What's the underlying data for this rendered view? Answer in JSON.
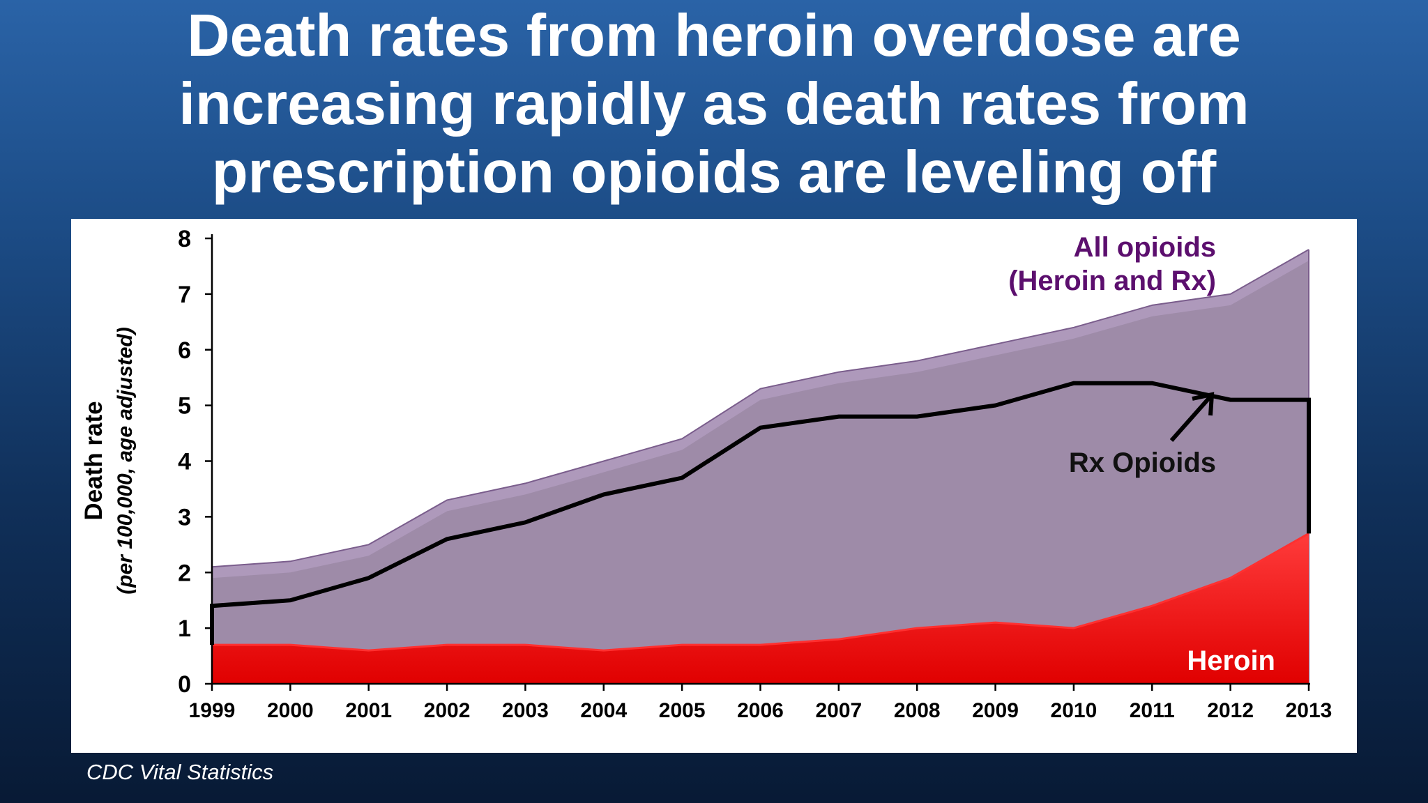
{
  "slide": {
    "title": "Death rates from heroin overdose are increasing rapidly as death rates from prescription opioids are leveling off",
    "source": "CDC Vital Statistics"
  },
  "chart_data": {
    "type": "area",
    "title": "",
    "xlabel": "",
    "ylabel": "Death rate",
    "ylabel_subtitle": "(per 100,000, age adjusted)",
    "x": [
      1999,
      2000,
      2001,
      2002,
      2003,
      2004,
      2005,
      2006,
      2007,
      2008,
      2009,
      2010,
      2011,
      2012,
      2013
    ],
    "x_tick_labels": [
      "1999",
      "2000",
      "2001",
      "2002",
      "2003",
      "2004",
      "2005",
      "2006",
      "2007",
      "2008",
      "2009",
      "2010",
      "2011",
      "2012",
      "2013"
    ],
    "y_tick_labels": [
      "0",
      "1",
      "2",
      "3",
      "4",
      "5",
      "6",
      "7",
      "8"
    ],
    "ylim": [
      0,
      8
    ],
    "grid": false,
    "series": [
      {
        "name": "All opioids (Heroin and Rx)",
        "label_lines": [
          "All opioids",
          "(Heroin and Rx)"
        ],
        "values": [
          2.1,
          2.2,
          2.5,
          3.3,
          3.6,
          4.0,
          4.4,
          5.3,
          5.6,
          5.8,
          6.1,
          6.4,
          6.8,
          7.0,
          7.8
        ],
        "fill": "#9e8ba8",
        "fill_top": "#b39dc2",
        "edge": "#7a5d8c",
        "label_color": "#5c0f6e"
      },
      {
        "name": "Rx Opioids",
        "values": [
          1.4,
          1.5,
          1.9,
          2.6,
          2.9,
          3.4,
          3.7,
          4.6,
          4.8,
          4.8,
          5.0,
          5.4,
          5.4,
          5.1,
          5.1
        ],
        "stroke": "#000000",
        "label_color": "#111111"
      },
      {
        "name": "Heroin",
        "values": [
          0.7,
          0.7,
          0.6,
          0.7,
          0.7,
          0.6,
          0.7,
          0.7,
          0.8,
          1.0,
          1.1,
          1.0,
          1.4,
          1.9,
          2.7
        ],
        "fill": "#ee0000",
        "fill_top": "#ff3030",
        "label_color": "#ffffff"
      }
    ]
  }
}
